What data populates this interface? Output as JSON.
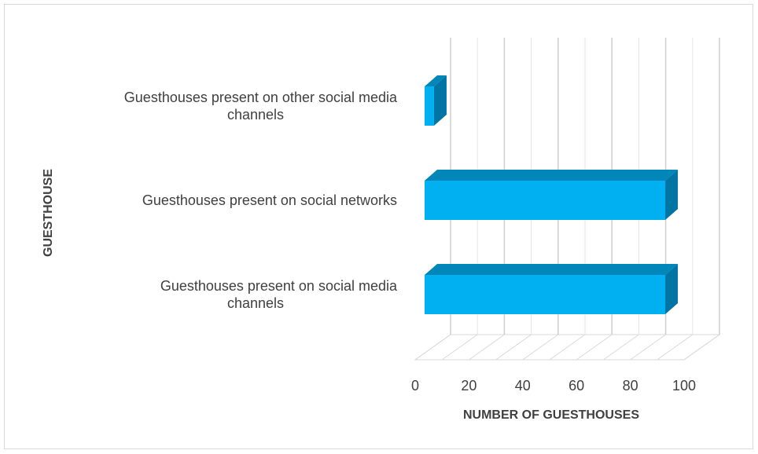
{
  "chart_data": {
    "type": "bar",
    "orientation": "horizontal",
    "style": "3d",
    "categories": [
      [
        "Guesthouses present on social media",
        "channels"
      ],
      [
        "Guesthouses present on social networks"
      ],
      [
        "Guesthouses present on other social media",
        "channels"
      ]
    ],
    "values": [
      93,
      93,
      7
    ],
    "xlabel": "NUMBER OF GUESTHOUSES",
    "ylabel": "GUESTHOUSE",
    "xticks": [
      "0",
      "20",
      "40",
      "60",
      "80",
      "100"
    ],
    "xlim": [
      0,
      100
    ],
    "grid": true,
    "legend": "none",
    "colors": {
      "bar_front": "#00b0f0",
      "bar_top": "#0086b8",
      "bar_side": "#0074a2",
      "grid": "#d9d9d9"
    }
  }
}
